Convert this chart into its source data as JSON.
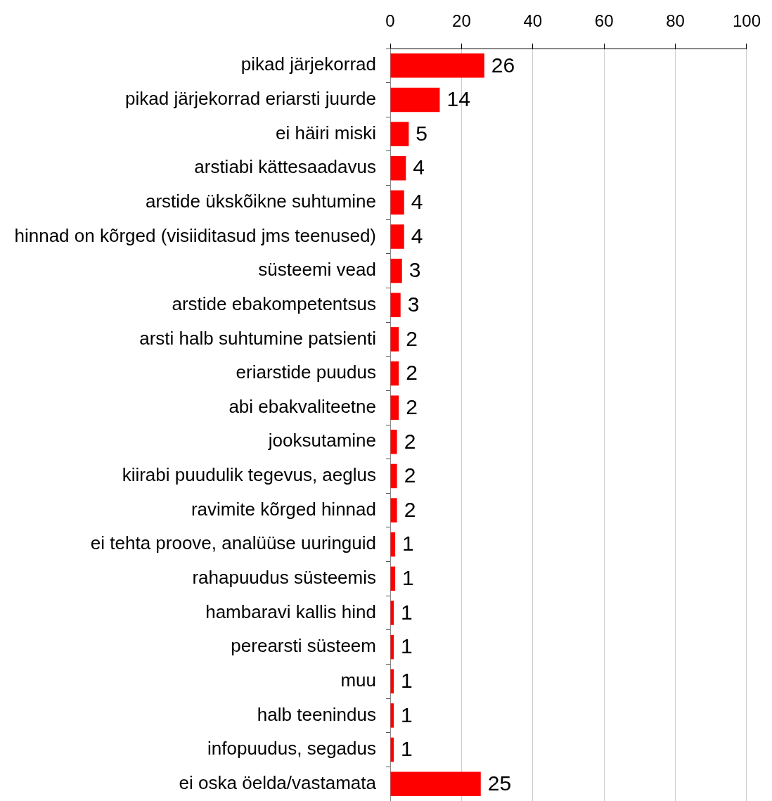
{
  "chart_data": {
    "type": "bar",
    "orientation": "horizontal",
    "categories": [
      "pikad järjekorrad",
      "pikad järjekorrad eriarsti juurde",
      "ei häiri miski",
      "arstiabi kättesaadavus",
      "arstide ükskõikne suhtumine",
      "hinnad on kõrged (visiiditasud jms teenused)",
      "süsteemi vead",
      "arstide ebakompetentsus",
      "arsti halb suhtumine patsienti",
      "eriarstide puudus",
      "abi ebakvaliteetne",
      "jooksutamine",
      "kiirabi puudulik tegevus, aeglus",
      "ravimite kõrged hinnad",
      "ei tehta proove, analüüse uuringuid",
      "rahapuudus süsteemis",
      "hambaravi kallis hind",
      "perearsti süsteem",
      "muu",
      "halb teenindus",
      "infopuudus, segadus",
      "ei oska öelda/vastamata"
    ],
    "values": [
      26.4,
      13.9,
      5.2,
      4.4,
      3.9,
      3.9,
      3.3,
      2.9,
      2.4,
      2.4,
      2.4,
      1.9,
      1.9,
      1.9,
      1.4,
      1.4,
      1.0,
      1.0,
      1.0,
      1.0,
      1.0,
      25.4
    ],
    "value_labels": [
      "26",
      "14",
      "5",
      "4",
      "4",
      "4",
      "3",
      "3",
      "2",
      "2",
      "2",
      "2",
      "2",
      "2",
      "1",
      "1",
      "1",
      "1",
      "1",
      "1",
      "1",
      "25"
    ],
    "color": "#ff0000",
    "xlim": [
      0,
      100
    ],
    "xticks": [
      0,
      20,
      40,
      60,
      80,
      100
    ],
    "grid": "x",
    "legend": false
  }
}
